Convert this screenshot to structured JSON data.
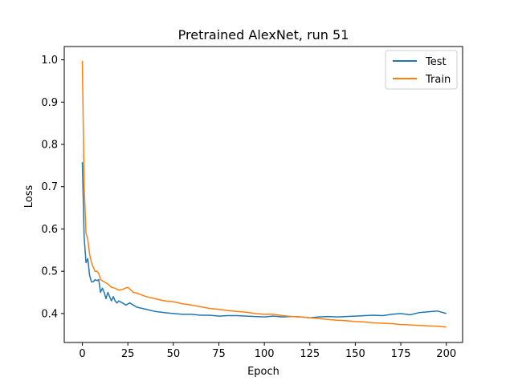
{
  "chart_data": {
    "type": "line",
    "title": "Pretrained AlexNet, run 51",
    "xlabel": "Epoch",
    "ylabel": "Loss",
    "xlim": [
      -9.95,
      208.95
    ],
    "ylim": [
      0.3315,
      1.0315
    ],
    "xticks": [
      0,
      25,
      50,
      75,
      100,
      125,
      150,
      175,
      200
    ],
    "yticks": [
      0.4,
      0.5,
      0.6,
      0.7,
      0.8,
      0.9,
      1.0
    ],
    "xtick_labels": [
      "0",
      "25",
      "50",
      "75",
      "100",
      "125",
      "150",
      "175",
      "200"
    ],
    "ytick_labels": [
      "0.4",
      "0.5",
      "0.6",
      "0.7",
      "0.8",
      "0.9",
      "1.0"
    ],
    "legend_position": "top-right",
    "series": [
      {
        "name": "Test",
        "color": "#1f77b4",
        "x": [
          0,
          1,
          2,
          3,
          4,
          5,
          6,
          7,
          8,
          9,
          10,
          11,
          12,
          13,
          14,
          15,
          16,
          17,
          18,
          19,
          20,
          22,
          24,
          26,
          28,
          30,
          35,
          40,
          45,
          50,
          55,
          60,
          65,
          70,
          75,
          80,
          85,
          90,
          95,
          100,
          105,
          110,
          115,
          120,
          125,
          130,
          135,
          140,
          145,
          150,
          155,
          160,
          165,
          170,
          175,
          180,
          185,
          190,
          195,
          200
        ],
        "values": [
          0.758,
          0.58,
          0.52,
          0.53,
          0.49,
          0.475,
          0.475,
          0.48,
          0.478,
          0.48,
          0.45,
          0.46,
          0.45,
          0.435,
          0.45,
          0.44,
          0.43,
          0.44,
          0.43,
          0.425,
          0.43,
          0.425,
          0.42,
          0.425,
          0.42,
          0.415,
          0.41,
          0.405,
          0.402,
          0.4,
          0.398,
          0.398,
          0.396,
          0.396,
          0.394,
          0.395,
          0.395,
          0.394,
          0.393,
          0.392,
          0.394,
          0.392,
          0.393,
          0.392,
          0.39,
          0.392,
          0.393,
          0.392,
          0.393,
          0.394,
          0.395,
          0.396,
          0.395,
          0.398,
          0.4,
          0.397,
          0.402,
          0.404,
          0.406,
          0.4
        ]
      },
      {
        "name": "Train",
        "color": "#ff7f0e",
        "x": [
          0,
          1,
          2,
          3,
          4,
          5,
          6,
          7,
          8,
          9,
          10,
          12,
          14,
          16,
          18,
          20,
          22,
          25,
          28,
          30,
          35,
          40,
          45,
          50,
          55,
          60,
          65,
          70,
          75,
          80,
          85,
          90,
          95,
          100,
          105,
          110,
          115,
          120,
          125,
          130,
          135,
          140,
          145,
          150,
          155,
          160,
          165,
          170,
          175,
          180,
          185,
          190,
          195,
          200
        ],
        "values": [
          0.998,
          0.7,
          0.59,
          0.575,
          0.54,
          0.52,
          0.51,
          0.5,
          0.5,
          0.495,
          0.48,
          0.475,
          0.47,
          0.462,
          0.46,
          0.455,
          0.457,
          0.462,
          0.45,
          0.448,
          0.44,
          0.435,
          0.43,
          0.428,
          0.423,
          0.42,
          0.416,
          0.412,
          0.41,
          0.407,
          0.405,
          0.403,
          0.4,
          0.398,
          0.398,
          0.395,
          0.393,
          0.392,
          0.39,
          0.388,
          0.386,
          0.384,
          0.383,
          0.381,
          0.38,
          0.378,
          0.377,
          0.376,
          0.374,
          0.373,
          0.372,
          0.371,
          0.37,
          0.368
        ]
      }
    ]
  }
}
